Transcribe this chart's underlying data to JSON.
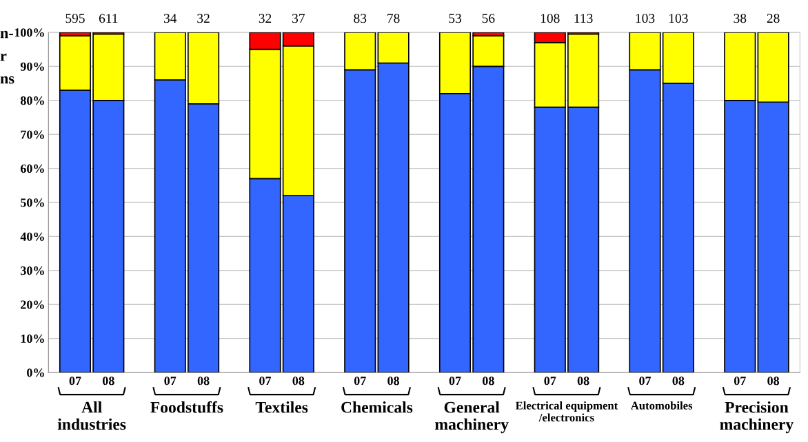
{
  "chart_data": {
    "type": "bar",
    "stacked": true,
    "categories": [
      "07",
      "08",
      "07",
      "08",
      "07",
      "08",
      "07",
      "08",
      "07",
      "08",
      "07",
      "08",
      "07",
      "08",
      "07",
      "08"
    ],
    "series": [
      {
        "color": "#3366ff",
        "values": [
          83,
          80,
          86,
          79,
          57,
          52,
          89,
          91,
          82,
          90,
          78,
          78,
          89,
          85,
          80,
          79.5
        ]
      },
      {
        "color": "#ffff00",
        "values": [
          16,
          19.5,
          14,
          21,
          38,
          44,
          11,
          9,
          18,
          9,
          19,
          21.5,
          11,
          15,
          20,
          20.5
        ]
      },
      {
        "color": "#ff0000",
        "values": [
          1,
          0.5,
          null,
          null,
          5,
          4,
          null,
          null,
          null,
          1,
          3,
          0.5,
          null,
          null,
          null,
          null
        ]
      }
    ],
    "ylim": [
      0,
      100
    ],
    "yticks": [
      {
        "value": 0,
        "label": "0%"
      },
      {
        "value": 10,
        "label": "10%"
      },
      {
        "value": 20,
        "label": "20%"
      },
      {
        "value": 30,
        "label": "30%"
      },
      {
        "value": 40,
        "label": "40%"
      },
      {
        "value": 50,
        "label": "50%"
      },
      {
        "value": 60,
        "label": "60%"
      },
      {
        "value": 70,
        "label": "70%"
      },
      {
        "value": 80,
        "label": "80%"
      },
      {
        "value": 90,
        "label": "90%"
      },
      {
        "value": 100,
        "label": "100%"
      }
    ],
    "grid": "y",
    "legend": false,
    "annotations": [
      "595",
      "611",
      "34",
      "32",
      "32",
      "37",
      "83",
      "78",
      "53",
      "56",
      "108",
      "113",
      "103",
      "103",
      "38",
      "28",
      "All\nindustries",
      "Foodstuffs",
      "Textiles",
      "Chemicals",
      "General\nmachinery",
      "Electrical equipment\n/electronics",
      "Automobiles",
      "Precision\nmachinery",
      "n-",
      "r",
      "ns"
    ]
  }
}
